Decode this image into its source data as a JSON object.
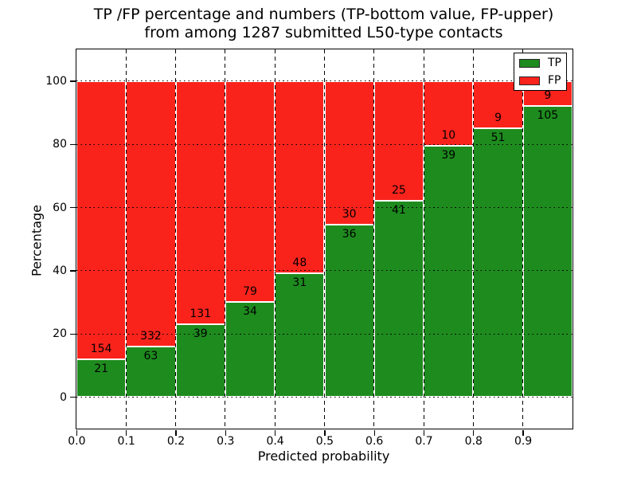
{
  "colors": {
    "tp_green": "#1e8b1e",
    "fp_red": "#fa231c",
    "bar_edge": "#ffffff",
    "grid": "#000000",
    "background": "#ffffff"
  },
  "chart_data": {
    "type": "bar",
    "stacked": true,
    "title_line1": "TP /FP percentage and numbers (TP-bottom value, FP-upper)",
    "title_line2": "from among 1287 submitted L50-type contacts",
    "xlabel": "Predicted probability",
    "ylabel": "Percentage",
    "xlim": [
      0.0,
      1.0
    ],
    "ylim": [
      -10,
      110
    ],
    "grid": true,
    "x_tick_labels": [
      "0.0",
      "0.1",
      "0.2",
      "0.3",
      "0.4",
      "0.5",
      "0.6",
      "0.7",
      "0.8",
      "0.9"
    ],
    "y_ticks": [
      0,
      20,
      40,
      60,
      80,
      100
    ],
    "y_tick_labels": [
      "0",
      "20",
      "40",
      "60",
      "80",
      "100"
    ],
    "legend_position": "upper right",
    "legend": [
      {
        "label": "TP",
        "color": "#1e8b1e"
      },
      {
        "label": "FP",
        "color": "#fa231c"
      }
    ],
    "bins": [
      {
        "x_start": 0.0,
        "x_end": 0.1,
        "tp_count": 21,
        "fp_count": 154,
        "tp_pct": 12.0,
        "fp_pct": 88.0
      },
      {
        "x_start": 0.1,
        "x_end": 0.2,
        "tp_count": 63,
        "fp_count": 332,
        "tp_pct": 15.95,
        "fp_pct": 84.05
      },
      {
        "x_start": 0.2,
        "x_end": 0.3,
        "tp_count": 39,
        "fp_count": 131,
        "tp_pct": 22.94,
        "fp_pct": 77.06
      },
      {
        "x_start": 0.3,
        "x_end": 0.4,
        "tp_count": 34,
        "fp_count": 79,
        "tp_pct": 30.09,
        "fp_pct": 69.91
      },
      {
        "x_start": 0.4,
        "x_end": 0.5,
        "tp_count": 31,
        "fp_count": 48,
        "tp_pct": 39.24,
        "fp_pct": 60.76
      },
      {
        "x_start": 0.5,
        "x_end": 0.6,
        "tp_count": 36,
        "fp_count": 30,
        "tp_pct": 54.55,
        "fp_pct": 45.45
      },
      {
        "x_start": 0.6,
        "x_end": 0.7,
        "tp_count": 41,
        "fp_count": 25,
        "tp_pct": 62.12,
        "fp_pct": 37.88
      },
      {
        "x_start": 0.7,
        "x_end": 0.8,
        "tp_count": 39,
        "fp_count": 10,
        "tp_pct": 79.59,
        "fp_pct": 20.41
      },
      {
        "x_start": 0.8,
        "x_end": 0.9,
        "tp_count": 51,
        "fp_count": 9,
        "tp_pct": 85.0,
        "fp_pct": 15.0
      },
      {
        "x_start": 0.9,
        "x_end": 1.0,
        "tp_count": 105,
        "fp_count": 9,
        "tp_pct": 92.11,
        "fp_pct": 7.89
      }
    ]
  }
}
